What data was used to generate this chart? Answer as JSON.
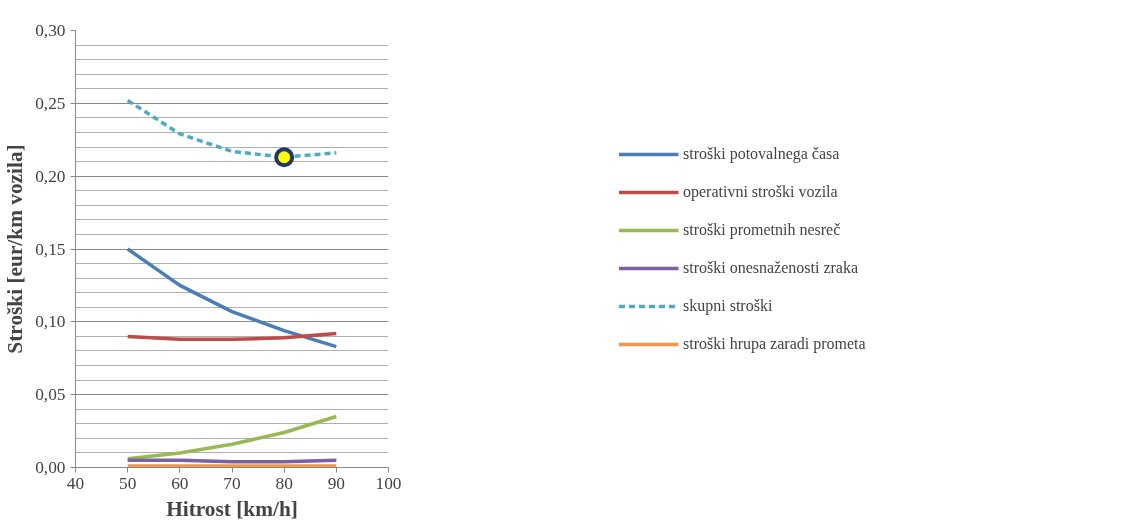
{
  "chart_data": {
    "type": "line",
    "xlabel": "Hitrost [km/h]",
    "ylabel": "Stroški [eur/km vozila]",
    "x": [
      50,
      60,
      70,
      80,
      90
    ],
    "xlim": [
      40,
      100
    ],
    "xticks": [
      40,
      50,
      60,
      70,
      80,
      90,
      100
    ],
    "ylim": [
      0,
      0.3
    ],
    "yticks": [
      {
        "value": 0,
        "label": "0,00"
      },
      {
        "value": 0.05,
        "label": "0,05"
      },
      {
        "value": 0.1,
        "label": "0,10"
      },
      {
        "value": 0.15,
        "label": "0,15"
      },
      {
        "value": 0.2,
        "label": "0,20"
      },
      {
        "value": 0.25,
        "label": "0,25"
      },
      {
        "value": 0.3,
        "label": "0,30"
      }
    ],
    "grid": "y",
    "legend": "right",
    "marker": "none",
    "series": [
      {
        "name": "stroški potovalnega časa",
        "color": "#4a7ebb",
        "values": [
          0.15,
          0.125,
          0.107,
          0.094,
          0.083
        ]
      },
      {
        "name": "operativni stroški vozila",
        "color": "#be4b48",
        "values": [
          0.09,
          0.088,
          0.088,
          0.089,
          0.092
        ]
      },
      {
        "name": "stroški prometnih nesreč",
        "color": "#98b954",
        "values": [
          0.006,
          0.01,
          0.016,
          0.024,
          0.035
        ]
      },
      {
        "name": "stroški onesnaženosti zraka",
        "color": "#7d60a0",
        "values": [
          0.005,
          0.005,
          0.004,
          0.004,
          0.005
        ]
      },
      {
        "name": "skupni stroški",
        "color": "#4bacc6",
        "line_style": "dashed",
        "values": [
          0.252,
          0.229,
          0.217,
          0.213,
          0.216
        ]
      },
      {
        "name": "stroški hrupa zaradi prometa",
        "color": "#f79646",
        "values": [
          0.001,
          0.001,
          0.001,
          0.001,
          0.001
        ]
      },
      {
        "type": "scatter",
        "x": [
          80
        ],
        "color": "#ffff00",
        "marker": "circle",
        "values": [
          0.213
        ]
      }
    ]
  }
}
